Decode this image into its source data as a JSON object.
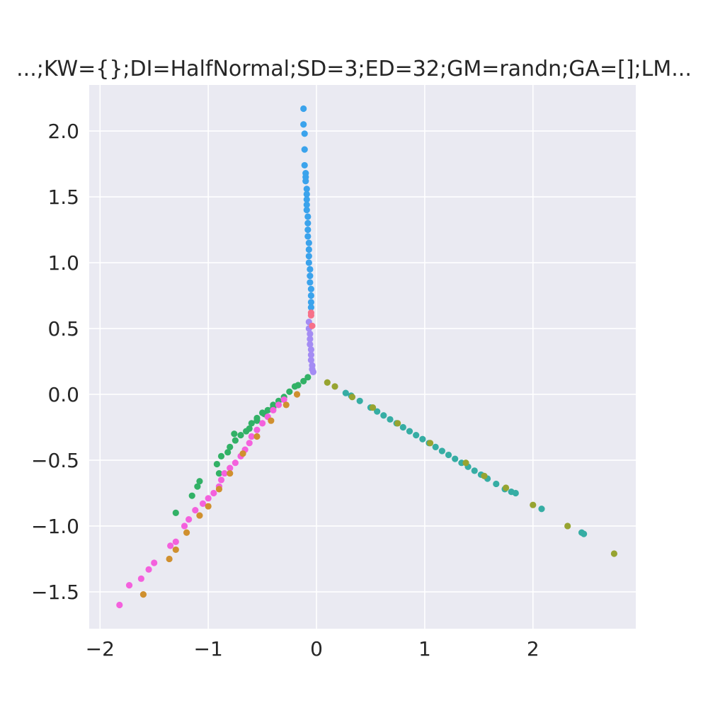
{
  "chart_data": {
    "type": "scatter",
    "title": "...;KW={};DI=HalfNormal;SD=3;ED=32;GM=randn;GA=[];LM...",
    "xlabel": "",
    "ylabel": "",
    "xlim": [
      -2.1,
      2.95
    ],
    "ylim": [
      -1.78,
      2.35
    ],
    "grid": true,
    "background": "#eaeaf2",
    "x_ticks": [
      {
        "value": -2,
        "label": "−2"
      },
      {
        "value": -1,
        "label": "−1"
      },
      {
        "value": 0,
        "label": "0"
      },
      {
        "value": 1,
        "label": "1"
      },
      {
        "value": 2,
        "label": "2"
      }
    ],
    "y_ticks": [
      {
        "value": -1.5,
        "label": "−1.5"
      },
      {
        "value": -1.0,
        "label": "−1.0"
      },
      {
        "value": -0.5,
        "label": "−0.5"
      },
      {
        "value": 0.0,
        "label": "0.0"
      },
      {
        "value": 0.5,
        "label": "0.5"
      },
      {
        "value": 1.0,
        "label": "1.0"
      },
      {
        "value": 1.5,
        "label": "1.5"
      },
      {
        "value": 2.0,
        "label": "2.0"
      }
    ],
    "series": [
      {
        "color": "#3ba3ec",
        "points": [
          [
            -0.12,
            2.17
          ],
          [
            -0.12,
            2.05
          ],
          [
            -0.11,
            1.98
          ],
          [
            -0.11,
            1.86
          ],
          [
            -0.11,
            1.74
          ],
          [
            -0.1,
            1.68
          ],
          [
            -0.1,
            1.65
          ],
          [
            -0.1,
            1.62
          ],
          [
            -0.09,
            1.56
          ],
          [
            -0.09,
            1.52
          ],
          [
            -0.09,
            1.48
          ],
          [
            -0.09,
            1.44
          ],
          [
            -0.09,
            1.4
          ],
          [
            -0.08,
            1.35
          ],
          [
            -0.08,
            1.3
          ],
          [
            -0.08,
            1.25
          ],
          [
            -0.08,
            1.2
          ],
          [
            -0.07,
            1.15
          ],
          [
            -0.07,
            1.1
          ],
          [
            -0.07,
            1.05
          ],
          [
            -0.07,
            1.0
          ],
          [
            -0.06,
            0.95
          ],
          [
            -0.06,
            0.9
          ],
          [
            -0.06,
            0.85
          ],
          [
            -0.05,
            0.8
          ],
          [
            -0.05,
            0.75
          ],
          [
            -0.05,
            0.7
          ],
          [
            -0.05,
            0.66
          ]
        ]
      },
      {
        "color": "#36ada4",
        "points": [
          [
            0.27,
            0.01
          ],
          [
            0.32,
            -0.01
          ],
          [
            0.4,
            -0.05
          ],
          [
            0.5,
            -0.1
          ],
          [
            0.56,
            -0.13
          ],
          [
            0.62,
            -0.16
          ],
          [
            0.68,
            -0.19
          ],
          [
            0.74,
            -0.22
          ],
          [
            0.8,
            -0.25
          ],
          [
            0.86,
            -0.28
          ],
          [
            0.92,
            -0.31
          ],
          [
            0.98,
            -0.34
          ],
          [
            1.04,
            -0.37
          ],
          [
            1.1,
            -0.4
          ],
          [
            1.16,
            -0.43
          ],
          [
            1.22,
            -0.46
          ],
          [
            1.28,
            -0.49
          ],
          [
            1.34,
            -0.52
          ],
          [
            1.4,
            -0.55
          ],
          [
            1.46,
            -0.58
          ],
          [
            1.52,
            -0.61
          ],
          [
            1.58,
            -0.64
          ],
          [
            1.66,
            -0.68
          ],
          [
            1.74,
            -0.72
          ],
          [
            1.8,
            -0.74
          ],
          [
            1.84,
            -0.75
          ],
          [
            2.08,
            -0.87
          ],
          [
            2.45,
            -1.05
          ],
          [
            2.47,
            -1.06
          ]
        ]
      },
      {
        "color": "#97a431",
        "points": [
          [
            0.1,
            0.09
          ],
          [
            0.17,
            0.06
          ],
          [
            0.33,
            -0.02
          ],
          [
            0.52,
            -0.1
          ],
          [
            0.75,
            -0.22
          ],
          [
            1.05,
            -0.37
          ],
          [
            1.38,
            -0.52
          ],
          [
            1.55,
            -0.62
          ],
          [
            1.75,
            -0.71
          ],
          [
            2.0,
            -0.84
          ],
          [
            2.32,
            -1.0
          ],
          [
            2.75,
            -1.21
          ]
        ]
      },
      {
        "color": "#32b166",
        "points": [
          [
            -0.08,
            0.13
          ],
          [
            -0.12,
            0.1
          ],
          [
            -0.17,
            0.07
          ],
          [
            -0.2,
            0.06
          ],
          [
            -0.25,
            0.02
          ],
          [
            -0.3,
            -0.02
          ],
          [
            -0.35,
            -0.05
          ],
          [
            -0.4,
            -0.08
          ],
          [
            -0.45,
            -0.12
          ],
          [
            -0.5,
            -0.14
          ],
          [
            -0.55,
            -0.18
          ],
          [
            -0.6,
            -0.22
          ],
          [
            -0.62,
            -0.26
          ],
          [
            -0.65,
            -0.28
          ],
          [
            -0.7,
            -0.31
          ],
          [
            -0.75,
            -0.35
          ],
          [
            -0.8,
            -0.4
          ],
          [
            -0.82,
            -0.44
          ],
          [
            -0.88,
            -0.47
          ],
          [
            -0.92,
            -0.53
          ],
          [
            -0.9,
            -0.6
          ],
          [
            -1.08,
            -0.66
          ],
          [
            -1.1,
            -0.7
          ],
          [
            -1.15,
            -0.77
          ],
          [
            -1.3,
            -0.9
          ],
          [
            -0.55,
            -0.2
          ],
          [
            -0.48,
            -0.15
          ],
          [
            -0.4,
            -0.1
          ],
          [
            -0.76,
            -0.3
          ]
        ]
      },
      {
        "color": "#f461dd",
        "points": [
          [
            -0.3,
            -0.04
          ],
          [
            -0.35,
            -0.08
          ],
          [
            -0.4,
            -0.12
          ],
          [
            -0.45,
            -0.17
          ],
          [
            -0.5,
            -0.22
          ],
          [
            -0.55,
            -0.27
          ],
          [
            -0.6,
            -0.32
          ],
          [
            -0.62,
            -0.37
          ],
          [
            -0.66,
            -0.42
          ],
          [
            -0.7,
            -0.47
          ],
          [
            -0.75,
            -0.52
          ],
          [
            -0.8,
            -0.56
          ],
          [
            -0.85,
            -0.6
          ],
          [
            -0.88,
            -0.65
          ],
          [
            -0.9,
            -0.7
          ],
          [
            -0.95,
            -0.75
          ],
          [
            -1.0,
            -0.79
          ],
          [
            -1.05,
            -0.83
          ],
          [
            -1.12,
            -0.88
          ],
          [
            -1.18,
            -0.95
          ],
          [
            -1.22,
            -1.0
          ],
          [
            -1.3,
            -1.12
          ],
          [
            -1.35,
            -1.15
          ],
          [
            -1.5,
            -1.28
          ],
          [
            -1.55,
            -1.33
          ],
          [
            -1.62,
            -1.4
          ],
          [
            -1.73,
            -1.45
          ],
          [
            -1.82,
            -1.6
          ]
        ]
      },
      {
        "color": "#d0902f",
        "points": [
          [
            -0.18,
            0.0
          ],
          [
            -0.28,
            -0.08
          ],
          [
            -0.42,
            -0.2
          ],
          [
            -0.55,
            -0.32
          ],
          [
            -0.68,
            -0.45
          ],
          [
            -0.8,
            -0.6
          ],
          [
            -0.9,
            -0.72
          ],
          [
            -1.0,
            -0.85
          ],
          [
            -1.08,
            -0.92
          ],
          [
            -1.2,
            -1.05
          ],
          [
            -1.3,
            -1.18
          ],
          [
            -1.36,
            -1.25
          ],
          [
            -1.6,
            -1.52
          ]
        ]
      },
      {
        "color": "#a48cf4",
        "points": [
          [
            -0.07,
            0.55
          ],
          [
            -0.07,
            0.5
          ],
          [
            -0.06,
            0.46
          ],
          [
            -0.06,
            0.42
          ],
          [
            -0.06,
            0.38
          ],
          [
            -0.05,
            0.34
          ],
          [
            -0.05,
            0.3
          ],
          [
            -0.05,
            0.26
          ],
          [
            -0.04,
            0.22
          ],
          [
            -0.04,
            0.19
          ],
          [
            -0.03,
            0.17
          ]
        ]
      },
      {
        "color": "#f77189",
        "points": [
          [
            -0.05,
            0.62
          ],
          [
            -0.05,
            0.6
          ],
          [
            -0.04,
            0.52
          ]
        ]
      }
    ]
  }
}
